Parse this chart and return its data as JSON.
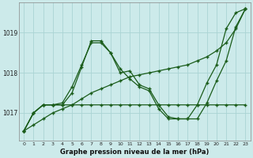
{
  "title": "Graphe pression niveau de la mer (hPa)",
  "bg_color": "#cceaea",
  "grid_color": "#aad4d4",
  "line_color": "#1a5c1a",
  "xlim": [
    -0.5,
    23.5
  ],
  "ylim": [
    1016.3,
    1019.75
  ],
  "yticks": [
    1017,
    1018,
    1019
  ],
  "xticks": [
    0,
    1,
    2,
    3,
    4,
    5,
    6,
    7,
    8,
    9,
    10,
    11,
    12,
    13,
    14,
    15,
    16,
    17,
    18,
    19,
    20,
    21,
    22,
    23
  ],
  "series_wavy": [
    1016.55,
    1017.0,
    1017.2,
    1017.2,
    1017.2,
    1017.5,
    1018.15,
    1018.8,
    1018.8,
    1018.5,
    1018.0,
    1018.05,
    1017.7,
    1017.6,
    1017.2,
    1016.9,
    1016.85,
    1016.85,
    1016.85,
    1017.25,
    1017.8,
    1018.3,
    1019.15,
    1019.6
  ],
  "series_flat": [
    1016.55,
    1017.0,
    1017.2,
    1017.2,
    1017.2,
    1017.2,
    1017.2,
    1017.2,
    1017.2,
    1017.2,
    1017.2,
    1017.2,
    1017.2,
    1017.2,
    1017.2,
    1017.2,
    1017.2,
    1017.2,
    1017.2,
    1017.2,
    1017.2,
    1017.2,
    1017.2,
    1017.2
  ],
  "series_diagonal_x": [
    0,
    1,
    2,
    3,
    4,
    5,
    6,
    7,
    8,
    9,
    10,
    11,
    12,
    13,
    14,
    15,
    16,
    17,
    18,
    19,
    20,
    21,
    22,
    23
  ],
  "series_diagonal_y": [
    1016.55,
    1016.7,
    1016.85,
    1017.0,
    1017.1,
    1017.2,
    1017.35,
    1017.5,
    1017.6,
    1017.7,
    1017.8,
    1017.9,
    1017.95,
    1018.0,
    1018.05,
    1018.1,
    1018.15,
    1018.2,
    1018.3,
    1018.4,
    1018.55,
    1018.75,
    1019.1,
    1019.6
  ],
  "series_wavy2": [
    1016.55,
    1017.0,
    1017.2,
    1017.2,
    1017.25,
    1017.65,
    1018.2,
    1018.75,
    1018.75,
    1018.5,
    1018.1,
    1017.85,
    1017.65,
    1017.55,
    1017.1,
    1016.85,
    1016.85,
    1016.85,
    1017.2,
    1017.75,
    1018.2,
    1019.1,
    1019.5,
    1019.6
  ]
}
